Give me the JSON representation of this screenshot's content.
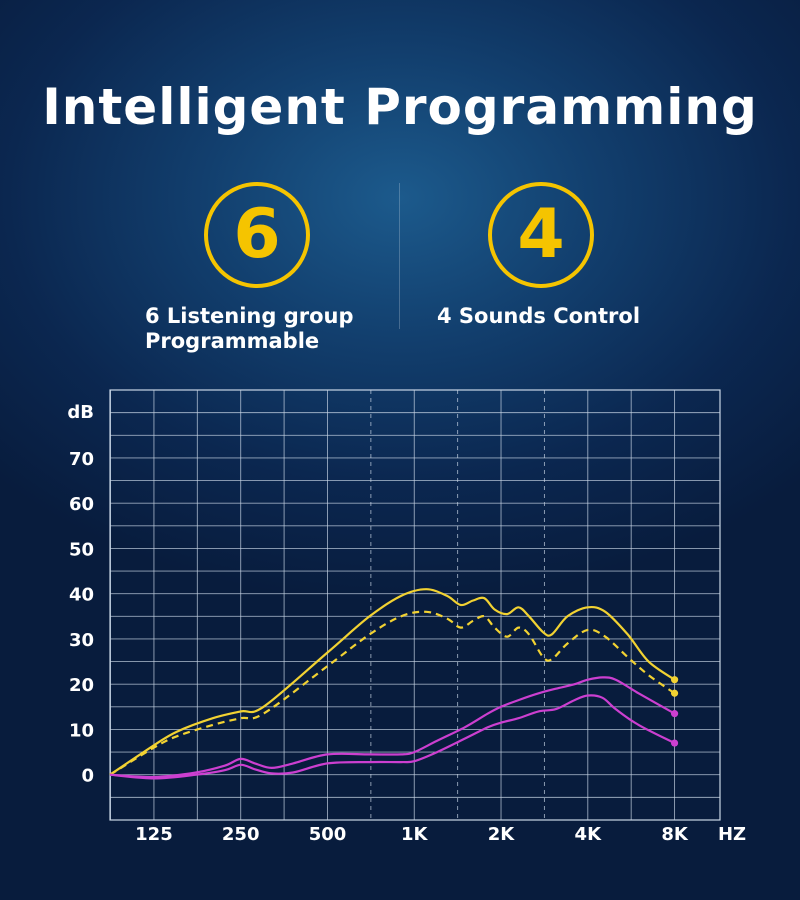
{
  "title": "Intelligent Programming",
  "features": [
    {
      "number": "6",
      "label_line1": "6 Listening group",
      "label_line2": "Programmable"
    },
    {
      "number": "4",
      "label_line1": "4 Sounds Control",
      "label_line2": ""
    }
  ],
  "colors": {
    "accent": "#f5c400",
    "curve_yellow": "#f2d232",
    "curve_magenta": "#cc3fd0",
    "grid": "#c9d6e6"
  },
  "chart_data": {
    "type": "line",
    "title": "",
    "ylabel": "dB",
    "xlabel": "HZ",
    "x_scale": "log2",
    "x_ticks": [
      {
        "value": 125,
        "label": "125"
      },
      {
        "value": 250,
        "label": "250"
      },
      {
        "value": 500,
        "label": "500"
      },
      {
        "value": 1000,
        "label": "1K"
      },
      {
        "value": 2000,
        "label": "2K"
      },
      {
        "value": 4000,
        "label": "4K"
      },
      {
        "value": 8000,
        "label": "8K"
      }
    ],
    "y_ticks": [
      0,
      10,
      20,
      30,
      40,
      50,
      60,
      70
    ],
    "ylim": [
      -10,
      85
    ],
    "xlim": [
      88,
      11500
    ],
    "grid": true,
    "dashed_gridlines_x": [
      707,
      1414,
      2828
    ],
    "series": [
      {
        "color": "#f2d232",
        "style": "solid",
        "end_marker": true,
        "x": [
          88,
          125,
          150,
          200,
          250,
          300,
          500,
          700,
          900,
          1100,
          1300,
          1450,
          1600,
          1750,
          1900,
          2100,
          2300,
          2500,
          2800,
          3000,
          3400,
          4000,
          4600,
          5500,
          6500,
          8000
        ],
        "y": [
          0,
          6.5,
          9.5,
          12.5,
          14,
          15,
          27,
          35,
          39.5,
          41,
          39.5,
          37.5,
          38.5,
          39,
          36.5,
          35.5,
          37,
          35,
          31.5,
          31,
          35,
          37,
          36,
          31,
          25,
          21
        ]
      },
      {
        "color": "#f2d232",
        "style": "dashed",
        "end_marker": true,
        "x": [
          88,
          125,
          150,
          200,
          250,
          300,
          500,
          700,
          900,
          1100,
          1300,
          1450,
          1600,
          1750,
          1900,
          2100,
          2300,
          2500,
          2800,
          3000,
          3400,
          4000,
          4600,
          5500,
          6500,
          8000
        ],
        "y": [
          0,
          6,
          8.5,
          11,
          12.5,
          13.5,
          24,
          31,
          35,
          36,
          34.5,
          32.5,
          34,
          35,
          32.5,
          30.5,
          32.5,
          31,
          26,
          25.5,
          29,
          32,
          30.5,
          26,
          22,
          18
        ]
      },
      {
        "color": "#cc3fd0",
        "style": "solid",
        "end_marker": true,
        "x": [
          88,
          125,
          175,
          220,
          250,
          280,
          320,
          380,
          500,
          700,
          900,
          1000,
          1200,
          1500,
          1800,
          2000,
          2300,
          2700,
          3100,
          3600,
          4000,
          4500,
          5000,
          6000,
          8000
        ],
        "y": [
          0,
          -0.5,
          0.5,
          2,
          3.5,
          2.5,
          1.5,
          2.5,
          4.5,
          4.5,
          4.5,
          5,
          7.5,
          10.5,
          13.5,
          15,
          16.5,
          18,
          19,
          20,
          21,
          21.5,
          21,
          18,
          13.5
        ]
      },
      {
        "color": "#cc3fd0",
        "style": "solid",
        "end_marker": true,
        "x": [
          88,
          125,
          175,
          220,
          250,
          280,
          320,
          380,
          500,
          700,
          900,
          1000,
          1200,
          1500,
          1800,
          2000,
          2300,
          2700,
          3100,
          3600,
          4000,
          4500,
          5000,
          6000,
          8000
        ],
        "y": [
          0,
          -0.8,
          0,
          1,
          2.2,
          1.2,
          0.3,
          0.5,
          2.5,
          2.8,
          2.8,
          3,
          5,
          8,
          10.5,
          11.5,
          12.5,
          14,
          14.5,
          16.5,
          17.5,
          17,
          14.5,
          11,
          7
        ]
      }
    ]
  }
}
